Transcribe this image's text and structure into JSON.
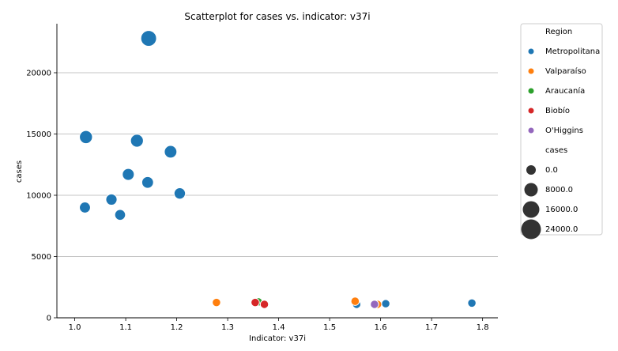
{
  "chart_data": {
    "type": "scatter",
    "title": "Scatterplot for cases vs. indicator: v37i",
    "xlabel": "Indicator: v37i",
    "ylabel": "cases",
    "xlim": [
      0.965,
      1.83
    ],
    "ylim": [
      0,
      24000
    ],
    "xticks": [
      1.0,
      1.1,
      1.2,
      1.3,
      1.4,
      1.5,
      1.6,
      1.7,
      1.8
    ],
    "xtick_labels": [
      "1.0",
      "1.1",
      "1.2",
      "1.3",
      "1.4",
      "1.5",
      "1.6",
      "1.7",
      "1.8"
    ],
    "yticks": [
      0,
      5000,
      10000,
      15000,
      20000
    ],
    "ytick_labels": [
      "0",
      "5000",
      "10000",
      "15000",
      "20000"
    ],
    "grid": "horizontal",
    "legend_position": "outside-right",
    "series": [
      {
        "name": "Metropolitana",
        "color": "#1f77b4",
        "points": [
          {
            "x": 1.145,
            "y": 22800
          },
          {
            "x": 1.022,
            "y": 14750
          },
          {
            "x": 1.122,
            "y": 14450
          },
          {
            "x": 1.188,
            "y": 13550
          },
          {
            "x": 1.105,
            "y": 11700
          },
          {
            "x": 1.143,
            "y": 11050
          },
          {
            "x": 1.206,
            "y": 10150
          },
          {
            "x": 1.072,
            "y": 9650
          },
          {
            "x": 1.02,
            "y": 9000
          },
          {
            "x": 1.089,
            "y": 8400
          },
          {
            "x": 1.553,
            "y": 1100
          },
          {
            "x": 1.61,
            "y": 1150
          },
          {
            "x": 1.779,
            "y": 1200
          }
        ]
      },
      {
        "name": "Valparaíso",
        "color": "#ff7f0e",
        "points": [
          {
            "x": 1.278,
            "y": 1250
          },
          {
            "x": 1.55,
            "y": 1350
          },
          {
            "x": 1.594,
            "y": 1100
          }
        ]
      },
      {
        "name": "Araucanía",
        "color": "#2ca02c",
        "points": [
          {
            "x": 1.36,
            "y": 1300
          }
        ]
      },
      {
        "name": "Biobío",
        "color": "#d62728",
        "points": [
          {
            "x": 1.354,
            "y": 1250
          },
          {
            "x": 1.372,
            "y": 1100
          }
        ]
      },
      {
        "name": "O'Higgins",
        "color": "#9467bd",
        "points": [
          {
            "x": 1.588,
            "y": 1100
          }
        ]
      }
    ],
    "legend": {
      "hue_title": "Region",
      "size_title": "cases",
      "size_entries": [
        {
          "label": "0.0",
          "value": 0
        },
        {
          "label": "8000.0",
          "value": 8000
        },
        {
          "label": "16000.0",
          "value": 16000
        },
        {
          "label": "24000.0",
          "value": 24000
        }
      ]
    }
  }
}
